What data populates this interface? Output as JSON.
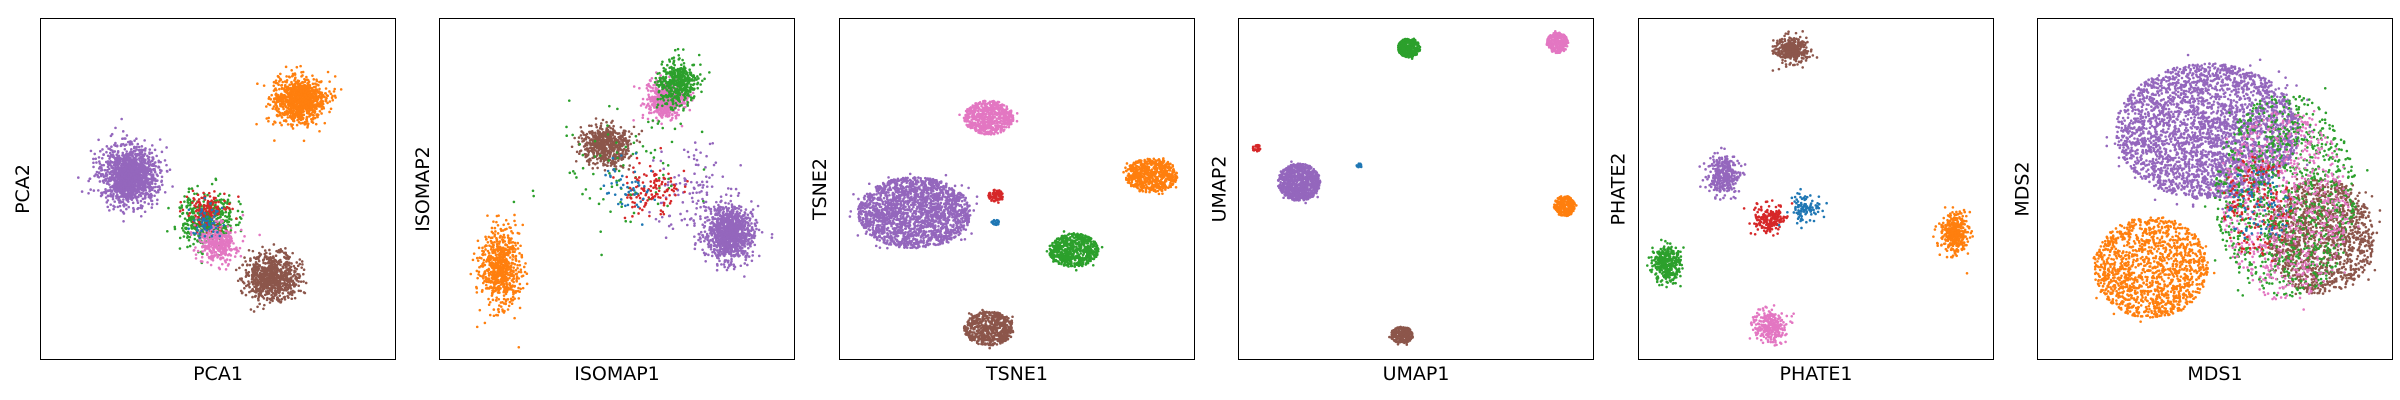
{
  "colors": [
    "#1f77b4",
    "#ff7f0e",
    "#2ca02c",
    "#d62728",
    "#9467bd",
    "#8c564b",
    "#e377c2"
  ],
  "chart_data": [
    {
      "type": "scatter",
      "xlabel": "PCA1",
      "ylabel": "PCA2",
      "grid": false,
      "ticks": false,
      "clusters": [
        {
          "color": "#9467bd",
          "center": [
            0.25,
            0.46
          ],
          "spread": [
            0.07,
            0.075
          ],
          "n": 1500
        },
        {
          "color": "#ff7f0e",
          "center": [
            0.73,
            0.24
          ],
          "spread": [
            0.065,
            0.06
          ],
          "n": 1000
        },
        {
          "color": "#2ca02c",
          "center": [
            0.47,
            0.59
          ],
          "spread": [
            0.07,
            0.07
          ],
          "n": 450
        },
        {
          "color": "#d62728",
          "center": [
            0.47,
            0.57
          ],
          "spread": [
            0.05,
            0.05
          ],
          "n": 150
        },
        {
          "color": "#e377c2",
          "center": [
            0.5,
            0.66
          ],
          "spread": [
            0.05,
            0.05
          ],
          "n": 350
        },
        {
          "color": "#8c564b",
          "center": [
            0.65,
            0.76
          ],
          "spread": [
            0.07,
            0.06
          ],
          "n": 800
        },
        {
          "color": "#1f77b4",
          "center": [
            0.47,
            0.6
          ],
          "spread": [
            0.04,
            0.04
          ],
          "n": 60
        }
      ]
    },
    {
      "type": "scatter",
      "xlabel": "ISOMAP1",
      "ylabel": "ISOMAP2",
      "grid": false,
      "ticks": false,
      "clusters": [
        {
          "color": "#9467bd",
          "center": [
            0.82,
            0.63
          ],
          "spread": [
            0.06,
            0.07
          ],
          "n": 1100
        },
        {
          "color": "#9467bd",
          "center": [
            0.7,
            0.52
          ],
          "spread": [
            0.1,
            0.14
          ],
          "n": 120
        },
        {
          "color": "#ff7f0e",
          "center": [
            0.17,
            0.73
          ],
          "spread": [
            0.05,
            0.1
          ],
          "n": 700
        },
        {
          "color": "#8c564b",
          "center": [
            0.47,
            0.37
          ],
          "spread": [
            0.06,
            0.055
          ],
          "n": 600
        },
        {
          "color": "#e377c2",
          "center": [
            0.64,
            0.24
          ],
          "spread": [
            0.05,
            0.05
          ],
          "n": 500
        },
        {
          "color": "#2ca02c",
          "center": [
            0.67,
            0.19
          ],
          "spread": [
            0.05,
            0.06
          ],
          "n": 450
        },
        {
          "color": "#2ca02c",
          "center": [
            0.5,
            0.45
          ],
          "spread": [
            0.18,
            0.18
          ],
          "n": 90
        },
        {
          "color": "#d62728",
          "center": [
            0.6,
            0.5
          ],
          "spread": [
            0.07,
            0.07
          ],
          "n": 120
        },
        {
          "color": "#1f77b4",
          "center": [
            0.54,
            0.5
          ],
          "spread": [
            0.07,
            0.07
          ],
          "n": 50
        }
      ]
    },
    {
      "type": "scatter",
      "xlabel": "TSNE1",
      "ylabel": "TSNE2",
      "grid": false,
      "ticks": false,
      "clusters": [
        {
          "color": "#9467bd",
          "center": [
            0.21,
            0.57
          ],
          "spread": [
            0.16,
            0.105
          ],
          "n": 2000,
          "shape": "disc"
        },
        {
          "color": "#e377c2",
          "center": [
            0.42,
            0.29
          ],
          "spread": [
            0.07,
            0.05
          ],
          "n": 600,
          "shape": "disc"
        },
        {
          "color": "#ff7f0e",
          "center": [
            0.88,
            0.46
          ],
          "spread": [
            0.075,
            0.05
          ],
          "n": 600,
          "shape": "disc"
        },
        {
          "color": "#2ca02c",
          "center": [
            0.66,
            0.68
          ],
          "spread": [
            0.07,
            0.05
          ],
          "n": 600,
          "shape": "disc"
        },
        {
          "color": "#8c564b",
          "center": [
            0.42,
            0.91
          ],
          "spread": [
            0.07,
            0.05
          ],
          "n": 600,
          "shape": "disc"
        },
        {
          "color": "#d62728",
          "center": [
            0.44,
            0.52
          ],
          "spread": [
            0.022,
            0.018
          ],
          "n": 80,
          "shape": "disc"
        },
        {
          "color": "#1f77b4",
          "center": [
            0.44,
            0.6
          ],
          "spread": [
            0.012,
            0.01
          ],
          "n": 25,
          "shape": "disc"
        }
      ]
    },
    {
      "type": "scatter",
      "xlabel": "UMAP1",
      "ylabel": "UMAP2",
      "grid": false,
      "ticks": false,
      "clusters": [
        {
          "color": "#9467bd",
          "center": [
            0.17,
            0.48
          ],
          "spread": [
            0.06,
            0.055
          ],
          "n": 900,
          "shape": "disc"
        },
        {
          "color": "#2ca02c",
          "center": [
            0.48,
            0.085
          ],
          "spread": [
            0.032,
            0.028
          ],
          "n": 300,
          "shape": "disc"
        },
        {
          "color": "#e377c2",
          "center": [
            0.9,
            0.07
          ],
          "spread": [
            0.03,
            0.03
          ],
          "n": 300,
          "shape": "disc"
        },
        {
          "color": "#ff7f0e",
          "center": [
            0.92,
            0.55
          ],
          "spread": [
            0.03,
            0.03
          ],
          "n": 250,
          "shape": "disc"
        },
        {
          "color": "#8c564b",
          "center": [
            0.46,
            0.93
          ],
          "spread": [
            0.032,
            0.025
          ],
          "n": 250,
          "shape": "disc"
        },
        {
          "color": "#d62728",
          "center": [
            0.05,
            0.38
          ],
          "spread": [
            0.012,
            0.01
          ],
          "n": 30,
          "shape": "disc"
        },
        {
          "color": "#1f77b4",
          "center": [
            0.34,
            0.43
          ],
          "spread": [
            0.008,
            0.007
          ],
          "n": 15,
          "shape": "disc"
        }
      ]
    },
    {
      "type": "scatter",
      "xlabel": "PHATE1",
      "ylabel": "PHATE2",
      "grid": false,
      "ticks": false,
      "clusters": [
        {
          "color": "#9467bd",
          "center": [
            0.24,
            0.46
          ],
          "spread": [
            0.04,
            0.05
          ],
          "n": 350
        },
        {
          "color": "#8c564b",
          "center": [
            0.43,
            0.09
          ],
          "spread": [
            0.04,
            0.035
          ],
          "n": 350
        },
        {
          "color": "#ff7f0e",
          "center": [
            0.89,
            0.63
          ],
          "spread": [
            0.035,
            0.05
          ],
          "n": 400
        },
        {
          "color": "#2ca02c",
          "center": [
            0.08,
            0.72
          ],
          "spread": [
            0.035,
            0.05
          ],
          "n": 350
        },
        {
          "color": "#e377c2",
          "center": [
            0.37,
            0.9
          ],
          "spread": [
            0.04,
            0.045
          ],
          "n": 300
        },
        {
          "color": "#d62728",
          "center": [
            0.37,
            0.59
          ],
          "spread": [
            0.04,
            0.04
          ],
          "n": 180
        },
        {
          "color": "#1f77b4",
          "center": [
            0.47,
            0.56
          ],
          "spread": [
            0.04,
            0.04
          ],
          "n": 100
        }
      ]
    },
    {
      "type": "scatter",
      "xlabel": "MDS1",
      "ylabel": "MDS2",
      "grid": false,
      "ticks": false,
      "clusters": [
        {
          "color": "#9467bd",
          "center": [
            0.48,
            0.33
          ],
          "spread": [
            0.26,
            0.2
          ],
          "n": 3200,
          "shape": "disc"
        },
        {
          "color": "#ff7f0e",
          "center": [
            0.32,
            0.73
          ],
          "spread": [
            0.16,
            0.15
          ],
          "n": 1400,
          "shape": "disc"
        },
        {
          "color": "#8c564b",
          "center": [
            0.8,
            0.64
          ],
          "spread": [
            0.15,
            0.17
          ],
          "n": 1300,
          "shape": "disc"
        },
        {
          "color": "#2ca02c",
          "center": [
            0.7,
            0.52
          ],
          "spread": [
            0.2,
            0.3
          ],
          "n": 1000,
          "shape": "disc"
        },
        {
          "color": "#e377c2",
          "center": [
            0.7,
            0.55
          ],
          "spread": [
            0.18,
            0.28
          ],
          "n": 700,
          "shape": "disc"
        },
        {
          "color": "#d62728",
          "center": [
            0.62,
            0.55
          ],
          "spread": [
            0.1,
            0.15
          ],
          "n": 150,
          "shape": "disc"
        },
        {
          "color": "#1f77b4",
          "center": [
            0.62,
            0.55
          ],
          "spread": [
            0.1,
            0.12
          ],
          "n": 80,
          "shape": "disc"
        }
      ]
    }
  ]
}
